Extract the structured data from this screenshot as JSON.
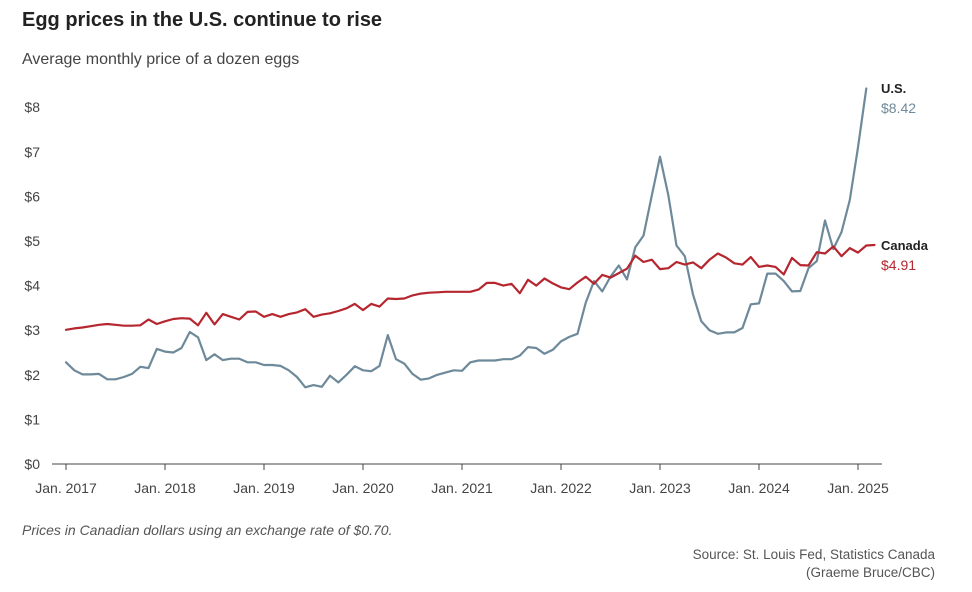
{
  "header": {
    "title": "Egg prices in the U.S. continue to rise",
    "subtitle": "Average monthly price of a dozen eggs"
  },
  "footer": {
    "note": "Prices in Canadian dollars using an exchange rate of $0.70.",
    "source_line1": "Source: St. Louis Fed, Statistics Canada",
    "source_line2": "(Graeme Bruce/CBC)"
  },
  "chart_data": {
    "type": "line",
    "title": "Egg prices in the U.S. continue to rise",
    "subtitle": "Average monthly price of a dozen eggs",
    "xlabel": "",
    "ylabel": "",
    "ylim": [
      0,
      8.5
    ],
    "y_ticks": [
      0,
      1,
      2,
      3,
      4,
      5,
      6,
      7,
      8
    ],
    "y_tick_labels": [
      "$0",
      "$1",
      "$2",
      "$3",
      "$4",
      "$5",
      "$6",
      "$7",
      "$8"
    ],
    "x_start": "2017-01",
    "x_ticks": [
      0,
      12,
      24,
      36,
      48,
      60,
      72,
      84,
      96
    ],
    "x_tick_labels": [
      "Jan. 2017",
      "Jan. 2018",
      "Jan. 2019",
      "Jan. 2020",
      "Jan. 2021",
      "Jan. 2022",
      "Jan. 2023",
      "Jan. 2024",
      "Jan. 2025"
    ],
    "grid": false,
    "legend": "end-labels-right",
    "series": [
      {
        "name": "U.S.",
        "end_label": "$8.42",
        "color": "#6e8a9a",
        "values": [
          2.28,
          2.1,
          2.01,
          2.01,
          2.02,
          1.9,
          1.9,
          1.95,
          2.02,
          2.18,
          2.15,
          2.58,
          2.52,
          2.5,
          2.6,
          2.96,
          2.84,
          2.33,
          2.46,
          2.33,
          2.36,
          2.36,
          2.28,
          2.28,
          2.22,
          2.22,
          2.2,
          2.1,
          1.95,
          1.72,
          1.77,
          1.73,
          1.98,
          1.83,
          2.0,
          2.19,
          2.1,
          2.08,
          2.2,
          2.89,
          2.35,
          2.25,
          2.02,
          1.89,
          1.92,
          2.0,
          2.05,
          2.1,
          2.09,
          2.28,
          2.32,
          2.32,
          2.32,
          2.35,
          2.35,
          2.43,
          2.62,
          2.6,
          2.47,
          2.56,
          2.75,
          2.85,
          2.92,
          3.62,
          4.1,
          3.87,
          4.2,
          4.45,
          4.14,
          4.86,
          5.12,
          6.02,
          6.89,
          6.03,
          4.9,
          4.66,
          3.8,
          3.2,
          3.0,
          2.92,
          2.95,
          2.95,
          3.05,
          3.58,
          3.6,
          4.27,
          4.27,
          4.1,
          3.87,
          3.88,
          4.39,
          4.55,
          5.46,
          4.82,
          5.2,
          5.92,
          7.1,
          8.42
        ]
      },
      {
        "name": "Canada",
        "end_label": "$4.91",
        "color": "#b5262f",
        "values": [
          3.01,
          3.04,
          3.06,
          3.09,
          3.12,
          3.14,
          3.12,
          3.1,
          3.1,
          3.11,
          3.24,
          3.14,
          3.2,
          3.25,
          3.27,
          3.26,
          3.11,
          3.39,
          3.13,
          3.36,
          3.3,
          3.24,
          3.41,
          3.42,
          3.3,
          3.36,
          3.3,
          3.36,
          3.4,
          3.47,
          3.3,
          3.35,
          3.38,
          3.43,
          3.49,
          3.59,
          3.45,
          3.59,
          3.53,
          3.71,
          3.7,
          3.71,
          3.78,
          3.82,
          3.84,
          3.85,
          3.86,
          3.86,
          3.86,
          3.86,
          3.91,
          4.06,
          4.06,
          4.0,
          4.04,
          3.83,
          4.13,
          4.0,
          4.16,
          4.05,
          3.96,
          3.92,
          4.07,
          4.2,
          4.04,
          4.24,
          4.18,
          4.28,
          4.38,
          4.67,
          4.53,
          4.58,
          4.37,
          4.39,
          4.53,
          4.47,
          4.52,
          4.39,
          4.58,
          4.72,
          4.63,
          4.5,
          4.47,
          4.64,
          4.42,
          4.45,
          4.42,
          4.25,
          4.62,
          4.46,
          4.45,
          4.75,
          4.72,
          4.88,
          4.66,
          4.84,
          4.74,
          4.9,
          4.91
        ]
      }
    ]
  }
}
